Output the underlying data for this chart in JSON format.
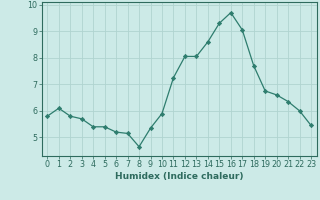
{
  "x": [
    0,
    1,
    2,
    3,
    4,
    5,
    6,
    7,
    8,
    9,
    10,
    11,
    12,
    13,
    14,
    15,
    16,
    17,
    18,
    19,
    20,
    21,
    22,
    23
  ],
  "y": [
    5.8,
    6.1,
    5.8,
    5.7,
    5.4,
    5.4,
    5.2,
    5.15,
    4.65,
    5.35,
    5.9,
    7.25,
    8.05,
    8.05,
    8.6,
    9.3,
    9.7,
    9.05,
    7.7,
    6.75,
    6.6,
    6.35,
    6.0,
    5.45
  ],
  "line_color": "#2e7d6e",
  "marker": "D",
  "marker_size": 2.2,
  "bg_color": "#cceae7",
  "grid_color": "#b0d4d0",
  "axis_color": "#2e6b5e",
  "xlabel": "Humidex (Indice chaleur)",
  "ylim": [
    4.3,
    10.1
  ],
  "xlim": [
    -0.5,
    23.5
  ],
  "yticks": [
    5,
    6,
    7,
    8,
    9,
    10
  ],
  "xticks": [
    0,
    1,
    2,
    3,
    4,
    5,
    6,
    7,
    8,
    9,
    10,
    11,
    12,
    13,
    14,
    15,
    16,
    17,
    18,
    19,
    20,
    21,
    22,
    23
  ],
  "xlabel_fontsize": 6.5,
  "tick_fontsize": 5.8,
  "line_width": 0.9
}
